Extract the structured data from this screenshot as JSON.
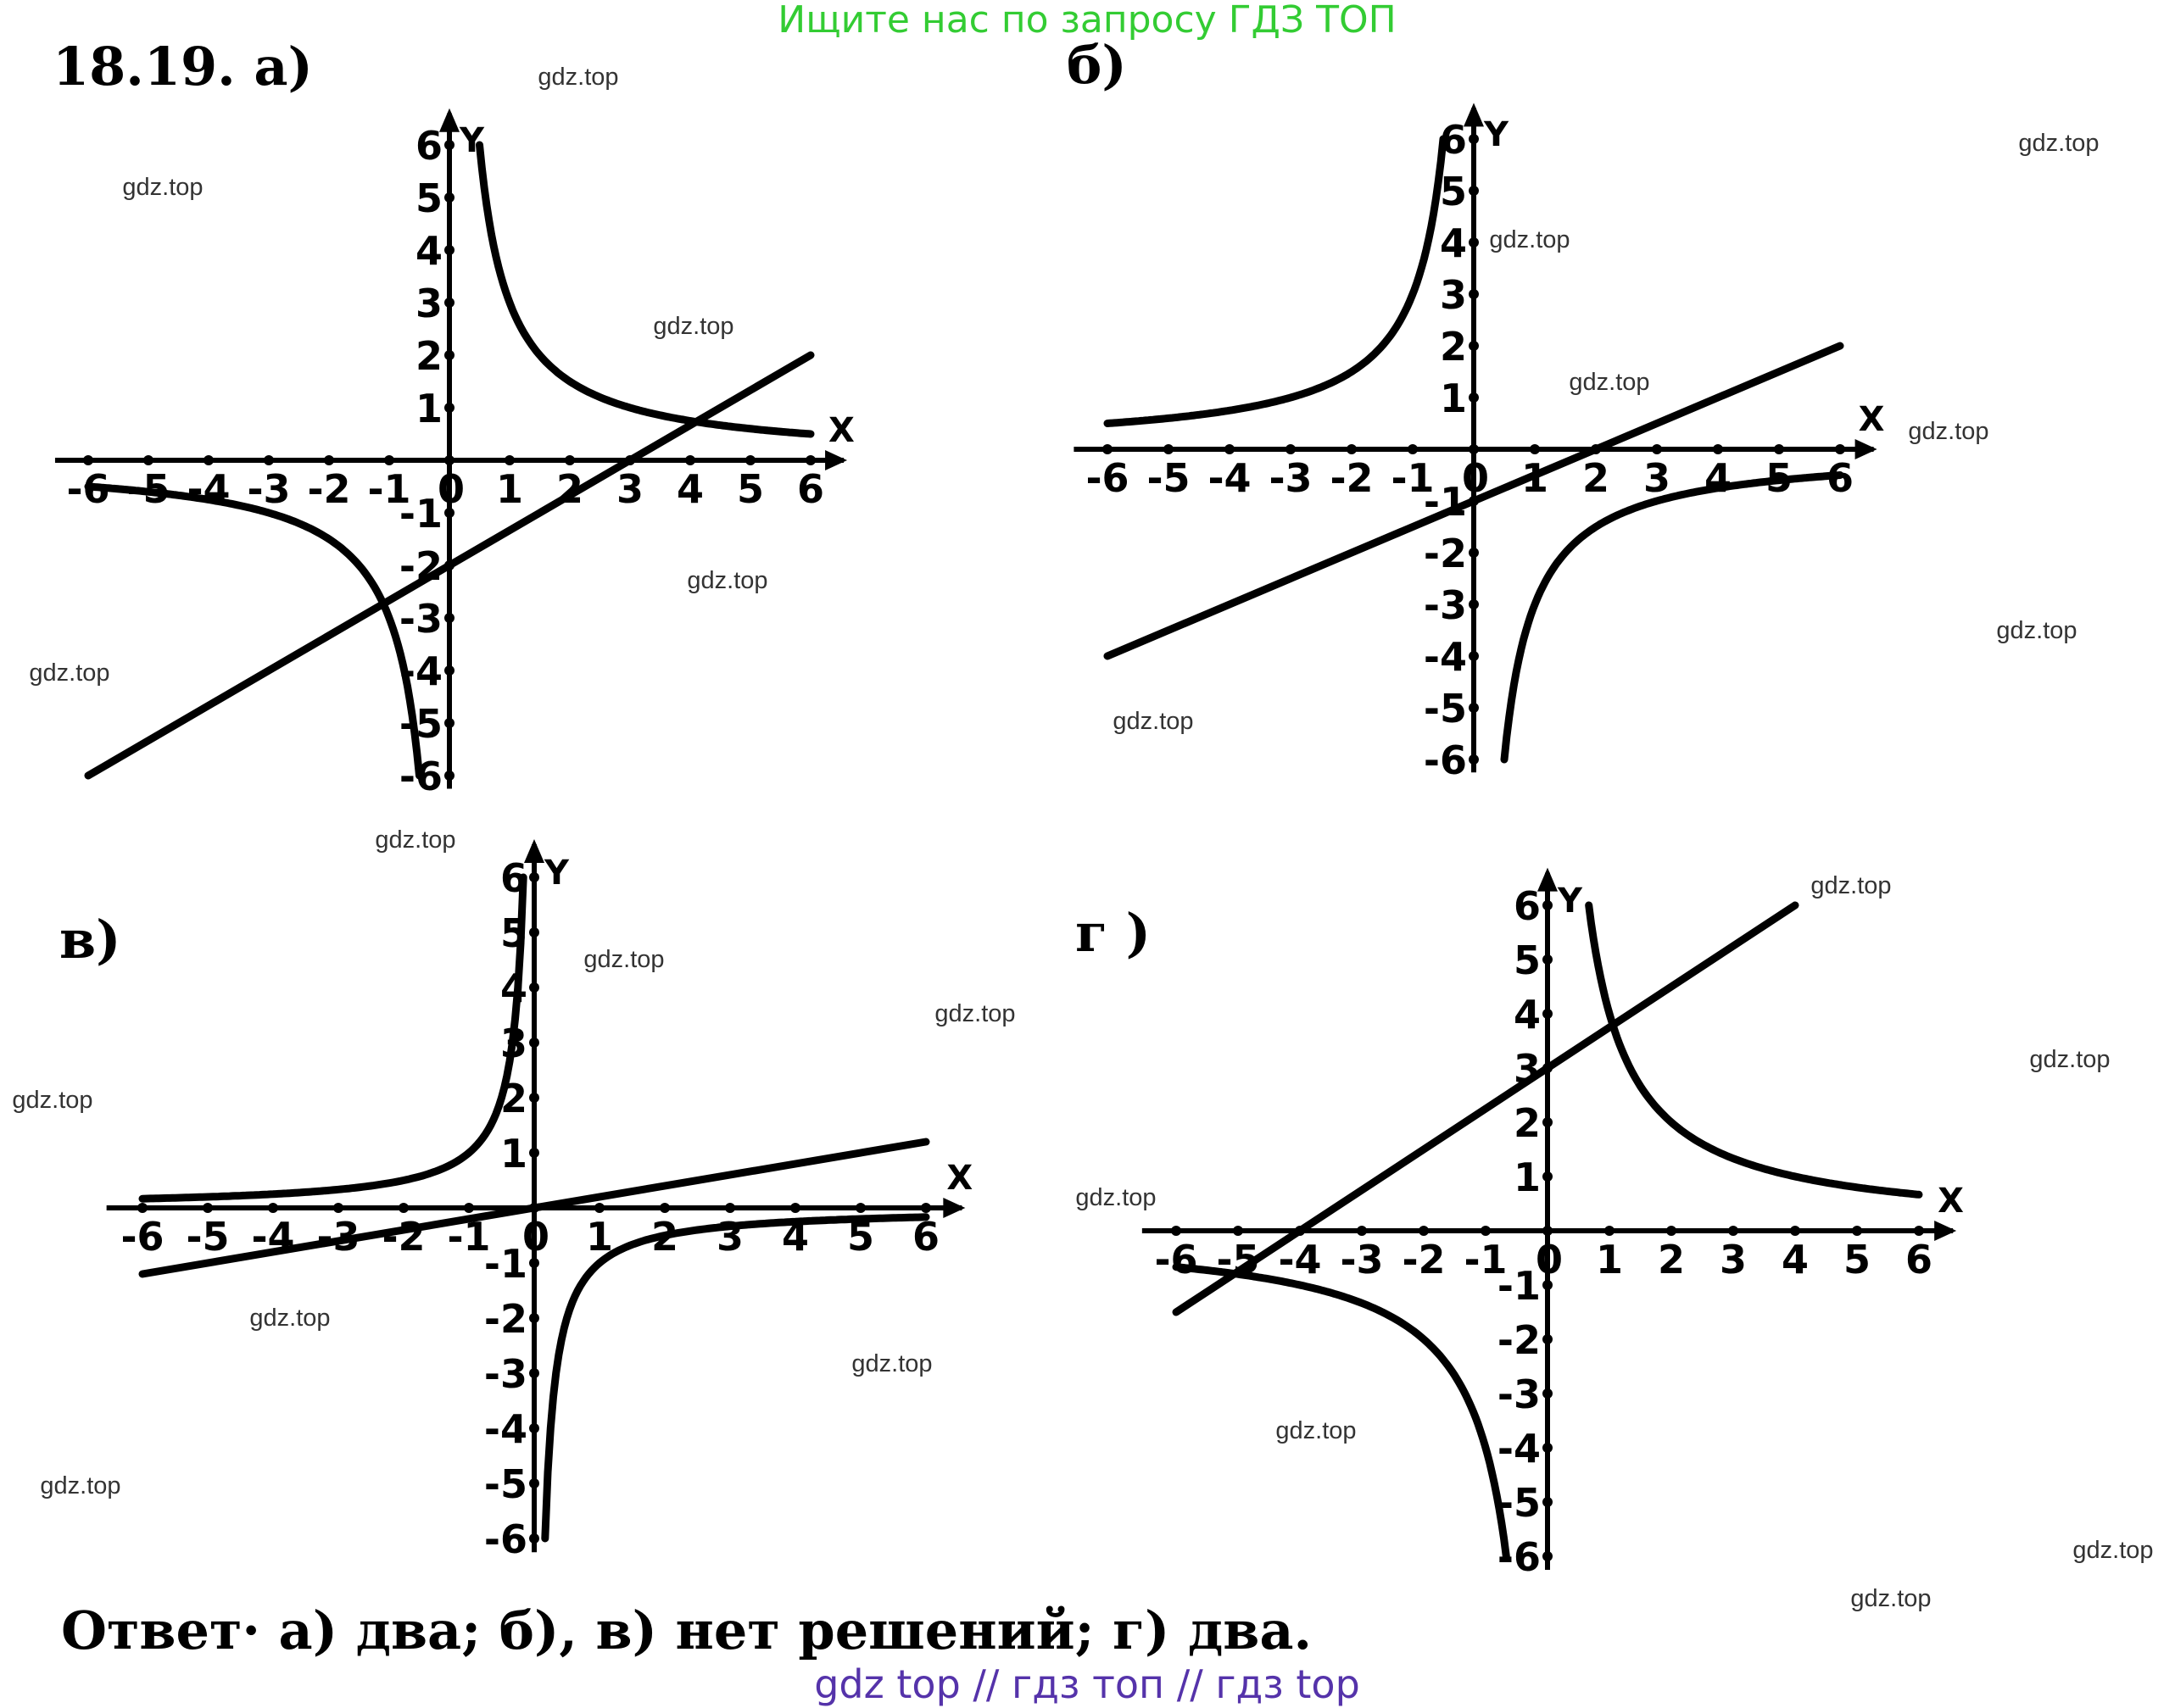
{
  "banner": "Ищите нас по запросу ГДЗ ТОП",
  "heading": "18.19. а)",
  "answer": "Ответ· а) два; б), в) нет решений; г) два.",
  "footer": "gdz top  //  гдз топ  //  гдз top",
  "watermark_text": "gdz.top",
  "colors": {
    "banner": "#33cc33",
    "footer": "#5533aa",
    "ink": "#000000",
    "watermark": "#333333"
  },
  "chart_data": [
    {
      "type": "line",
      "panel_label": "а)",
      "xlabel": "X",
      "ylabel": "Y",
      "xlim": [
        -6,
        6
      ],
      "ylim": [
        -6,
        6
      ],
      "x_ticks": [
        "-6",
        "-5",
        "-4",
        "-3",
        "-2",
        "-1",
        "0",
        "1",
        "2",
        "3",
        "4",
        "5",
        "6"
      ],
      "y_ticks": [
        "6",
        "5",
        "4",
        "3",
        "2",
        "1",
        "-1",
        "-2",
        "-3",
        "-4",
        "-5",
        "-6"
      ],
      "series": [
        {
          "name": "hyperbola",
          "kind": "hyperbola",
          "k": 3
        },
        {
          "name": "line",
          "kind": "line",
          "slope": 0.6667,
          "intercept": -2,
          "x_range": [
            -6,
            6
          ]
        }
      ],
      "solutions": 2
    },
    {
      "type": "line",
      "panel_label": "б)",
      "xlabel": "X",
      "ylabel": "Y",
      "xlim": [
        -6,
        6
      ],
      "ylim": [
        -6,
        6
      ],
      "x_ticks": [
        "-6",
        "-5",
        "-4",
        "-3",
        "-2",
        "-1",
        "0",
        "1",
        "2",
        "3",
        "4",
        "5",
        "6"
      ],
      "y_ticks": [
        "6",
        "5",
        "4",
        "3",
        "2",
        "1",
        "-1",
        "-2",
        "-3",
        "-4",
        "-5",
        "-6"
      ],
      "series": [
        {
          "name": "hyperbola",
          "kind": "hyperbola",
          "k": -3
        },
        {
          "name": "line",
          "kind": "line",
          "slope": 0.5,
          "intercept": -1,
          "x_range": [
            -6,
            6
          ]
        }
      ],
      "solutions": 0
    },
    {
      "type": "line",
      "panel_label": "в)",
      "xlabel": "X",
      "ylabel": "Y",
      "xlim": [
        -6,
        6
      ],
      "ylim": [
        -6,
        6
      ],
      "x_ticks": [
        "-6",
        "-5",
        "-4",
        "-3",
        "-2",
        "-1",
        "0",
        "1",
        "2",
        "3",
        "4",
        "5",
        "6"
      ],
      "y_ticks": [
        "6",
        "5",
        "4",
        "3",
        "2",
        "1",
        "-1",
        "-2",
        "-3",
        "-4",
        "-5",
        "-6"
      ],
      "series": [
        {
          "name": "hyperbola",
          "kind": "hyperbola",
          "k": -1
        },
        {
          "name": "line",
          "kind": "line",
          "slope": 0.2,
          "intercept": 0,
          "x_range": [
            -6,
            6
          ]
        }
      ],
      "solutions": 0
    },
    {
      "type": "line",
      "panel_label": "г )",
      "xlabel": "X",
      "ylabel": "Y",
      "xlim": [
        -6,
        6
      ],
      "ylim": [
        -6,
        6
      ],
      "x_ticks": [
        "-6",
        "-5",
        "-4",
        "-3",
        "-2",
        "-1",
        "0",
        "1",
        "2",
        "3",
        "4",
        "5",
        "6"
      ],
      "y_ticks": [
        "6",
        "5",
        "4",
        "3",
        "2",
        "1",
        "-1",
        "-2",
        "-3",
        "-4",
        "-5",
        "-6"
      ],
      "series": [
        {
          "name": "hyperbola",
          "kind": "hyperbola",
          "k": 4
        },
        {
          "name": "line",
          "kind": "line",
          "slope": 0.75,
          "intercept": 3,
          "x_range": [
            -6,
            4
          ]
        }
      ],
      "solutions": 2
    }
  ]
}
